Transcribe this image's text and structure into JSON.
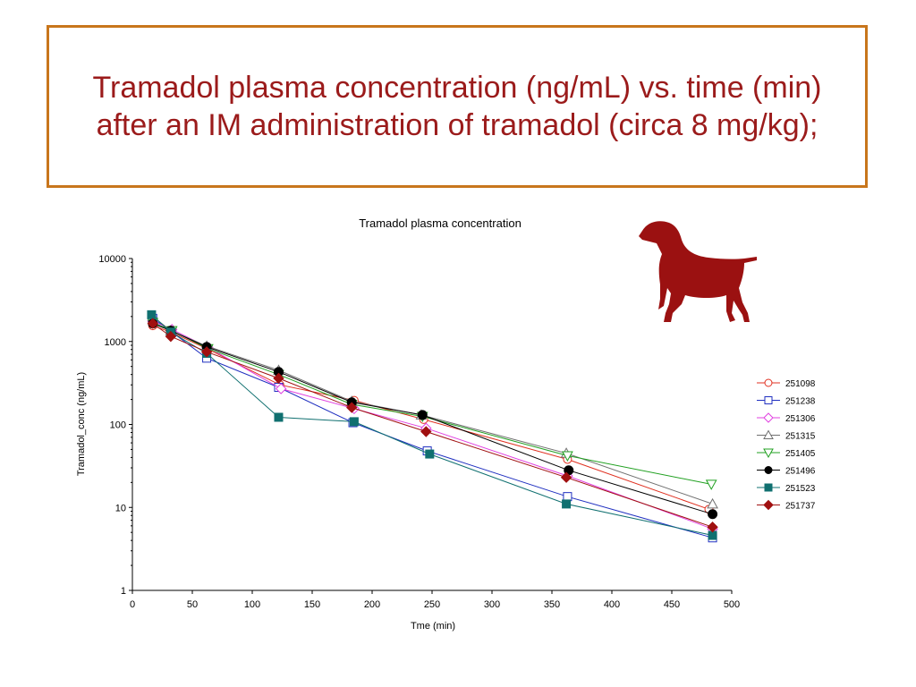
{
  "slide": {
    "title": "Tramadol plasma concentration (ng/mL) vs. time (min) after an IM administration of tramadol (circa 8 mg/kg);",
    "title_color": "#9b1b1b",
    "border_color": "#c8761c",
    "dog_color": "#9b1111"
  },
  "chart_data": {
    "type": "line",
    "title": "Tramadol plasma concentration",
    "xlabel": "Tme (min)",
    "ylabel": "Tramadol_conc (ng/mL)",
    "xlim": [
      0,
      500
    ],
    "ylim": [
      1,
      10000
    ],
    "yscale": "log",
    "grid": false,
    "legend_position": "right",
    "xticks": [
      0,
      50,
      100,
      150,
      200,
      250,
      300,
      350,
      400,
      450,
      500
    ],
    "yticks": [
      1,
      10,
      100,
      1000,
      10000
    ],
    "xtick_labels": [
      "0",
      "50",
      "100",
      "150",
      "200",
      "250",
      "300",
      "350",
      "400",
      "450",
      "500"
    ],
    "ytick_labels": [
      "1",
      "10",
      "100",
      "1000",
      "10000"
    ],
    "series": [
      {
        "name": "251098",
        "color": "#e03020",
        "marker": "circle-open",
        "x": [
          17,
          32,
          62,
          123,
          185,
          243,
          363,
          481
        ],
        "y": [
          1550,
          1300,
          820,
          300,
          195,
          115,
          38,
          9.5
        ]
      },
      {
        "name": "251238",
        "color": "#2030c0",
        "marker": "square-open",
        "x": [
          17,
          33,
          62,
          122,
          184,
          246,
          363,
          484
        ],
        "y": [
          1900,
          1300,
          630,
          280,
          105,
          48,
          13.5,
          4.3
        ]
      },
      {
        "name": "251306",
        "color": "#e040e0",
        "marker": "diamond-open",
        "x": [
          17,
          33,
          63,
          124,
          185,
          245,
          363,
          484
        ],
        "y": [
          1750,
          1400,
          850,
          270,
          155,
          90,
          24,
          5.5
        ]
      },
      {
        "name": "251315",
        "color": "#707070",
        "marker": "triangle-up-open",
        "x": [
          17,
          32,
          62,
          122,
          183,
          241,
          362,
          484
        ],
        "y": [
          2000,
          1350,
          880,
          450,
          190,
          130,
          45,
          11
        ]
      },
      {
        "name": "251405",
        "color": "#20a020",
        "marker": "triangle-down-open",
        "x": [
          17,
          33,
          63,
          122,
          183,
          242,
          363,
          483
        ],
        "y": [
          1700,
          1350,
          820,
          400,
          175,
          125,
          42,
          19
        ]
      },
      {
        "name": "251496",
        "color": "#000000",
        "marker": "circle-filled",
        "x": [
          17,
          32,
          62,
          122,
          183,
          242,
          364,
          484
        ],
        "y": [
          1650,
          1350,
          860,
          430,
          185,
          130,
          28,
          8.3
        ]
      },
      {
        "name": "251523",
        "color": "#107070",
        "marker": "square-filled",
        "x": [
          16,
          32,
          62,
          122,
          185,
          248,
          362,
          484
        ],
        "y": [
          2100,
          1300,
          720,
          122,
          108,
          44,
          11,
          4.6
        ]
      },
      {
        "name": "251737",
        "color": "#a01010",
        "marker": "diamond-filled",
        "x": [
          17,
          32,
          62,
          122,
          183,
          245,
          362,
          484
        ],
        "y": [
          1650,
          1150,
          750,
          360,
          160,
          82,
          23,
          5.8
        ]
      }
    ]
  }
}
